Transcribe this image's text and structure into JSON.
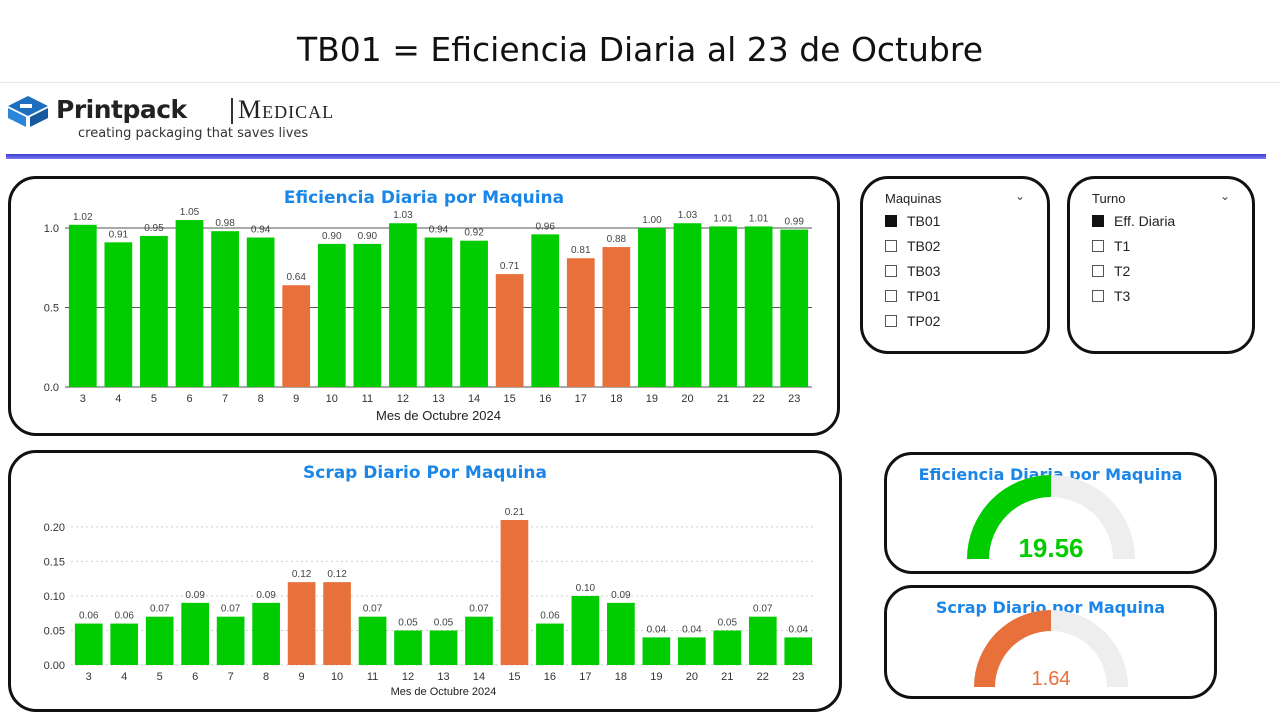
{
  "slide_title": "TB01 = Eficiencia Diaria al 23 de Octubre",
  "logo": {
    "brand": "Printpack",
    "division": "Medical",
    "tagline": "creating packaging that saves lives"
  },
  "colors": {
    "accent": "#1a86e8",
    "good": "#00cc00",
    "bad": "#e8703a",
    "gauge_bg": "#eeeeee"
  },
  "slicers": {
    "maquinas": {
      "header": "Maquinas",
      "items": [
        {
          "label": "TB01",
          "checked": true
        },
        {
          "label": "TB02",
          "checked": false
        },
        {
          "label": "TB03",
          "checked": false
        },
        {
          "label": "TP01",
          "checked": false
        },
        {
          "label": "TP02",
          "checked": false
        }
      ]
    },
    "turno": {
      "header": "Turno",
      "items": [
        {
          "label": "Eff. Diaria",
          "checked": true
        },
        {
          "label": "T1",
          "checked": false
        },
        {
          "label": "T2",
          "checked": false
        },
        {
          "label": "T3",
          "checked": false
        }
      ]
    }
  },
  "gauges": [
    {
      "title": "Eficiencia Diaria por Maquina",
      "value": "19.56",
      "fill_fraction": 0.5,
      "color": "#00cc00"
    },
    {
      "title": "Scrap Diario por Maquina",
      "value": "1.64",
      "fill_fraction": 0.5,
      "color": "#e8703a"
    }
  ],
  "chart_data": [
    {
      "type": "bar",
      "title": "Eficiencia Diaria por Maquina",
      "xlabel": "Mes de Octubre 2024",
      "ylabel": "",
      "ylim": [
        0,
        1.0
      ],
      "yticks": [
        "0.0",
        "0.5",
        "1.0"
      ],
      "grid": true,
      "categories": [
        "3",
        "4",
        "5",
        "6",
        "7",
        "8",
        "9",
        "10",
        "11",
        "12",
        "13",
        "14",
        "15",
        "16",
        "17",
        "18",
        "19",
        "20",
        "21",
        "22",
        "23"
      ],
      "values": [
        1.02,
        0.91,
        0.95,
        1.05,
        0.98,
        0.94,
        0.64,
        0.9,
        0.9,
        1.03,
        0.94,
        0.92,
        0.71,
        0.96,
        0.81,
        0.88,
        1.0,
        1.03,
        1.01,
        1.01,
        0.99
      ],
      "labels": [
        "1.02",
        "0.91",
        "0.95",
        "1.05",
        "0.98",
        "0.94",
        "0.64",
        "0.90",
        "0.90",
        "1.03",
        "0.94",
        "0.92",
        "0.71",
        "0.96",
        "0.81",
        "0.88",
        "1.00",
        "1.03",
        "1.01",
        "1.01",
        "0.99"
      ],
      "bar_colors": [
        "good",
        "good",
        "good",
        "good",
        "good",
        "good",
        "bad",
        "good",
        "good",
        "good",
        "good",
        "good",
        "bad",
        "good",
        "bad",
        "bad",
        "good",
        "good",
        "good",
        "good",
        "good"
      ]
    },
    {
      "type": "bar",
      "title": "Scrap Diario Por Maquina",
      "xlabel": "Mes de Octubre 2024",
      "ylabel": "",
      "ylim": [
        0,
        0.21
      ],
      "yticks": [
        "0.00",
        "0.05",
        "0.10",
        "0.15",
        "0.20"
      ],
      "grid": true,
      "categories": [
        "3",
        "4",
        "5",
        "6",
        "7",
        "8",
        "9",
        "10",
        "11",
        "12",
        "13",
        "14",
        "15",
        "16",
        "17",
        "18",
        "19",
        "20",
        "21",
        "22",
        "23"
      ],
      "values": [
        0.06,
        0.06,
        0.07,
        0.09,
        0.07,
        0.09,
        0.12,
        0.12,
        0.07,
        0.05,
        0.05,
        0.07,
        0.21,
        0.06,
        0.1,
        0.09,
        0.04,
        0.04,
        0.05,
        0.07,
        0.04
      ],
      "labels": [
        "0.06",
        "0.06",
        "0.07",
        "0.09",
        "0.07",
        "0.09",
        "0.12",
        "0.12",
        "0.07",
        "0.05",
        "0.05",
        "0.07",
        "0.21",
        "0.06",
        "0.10",
        "0.09",
        "0.04",
        "0.04",
        "0.05",
        "0.07",
        "0.04"
      ],
      "bar_colors": [
        "good",
        "good",
        "good",
        "good",
        "good",
        "good",
        "bad",
        "bad",
        "good",
        "good",
        "good",
        "good",
        "bad",
        "good",
        "good",
        "good",
        "good",
        "good",
        "good",
        "good",
        "good"
      ]
    }
  ]
}
